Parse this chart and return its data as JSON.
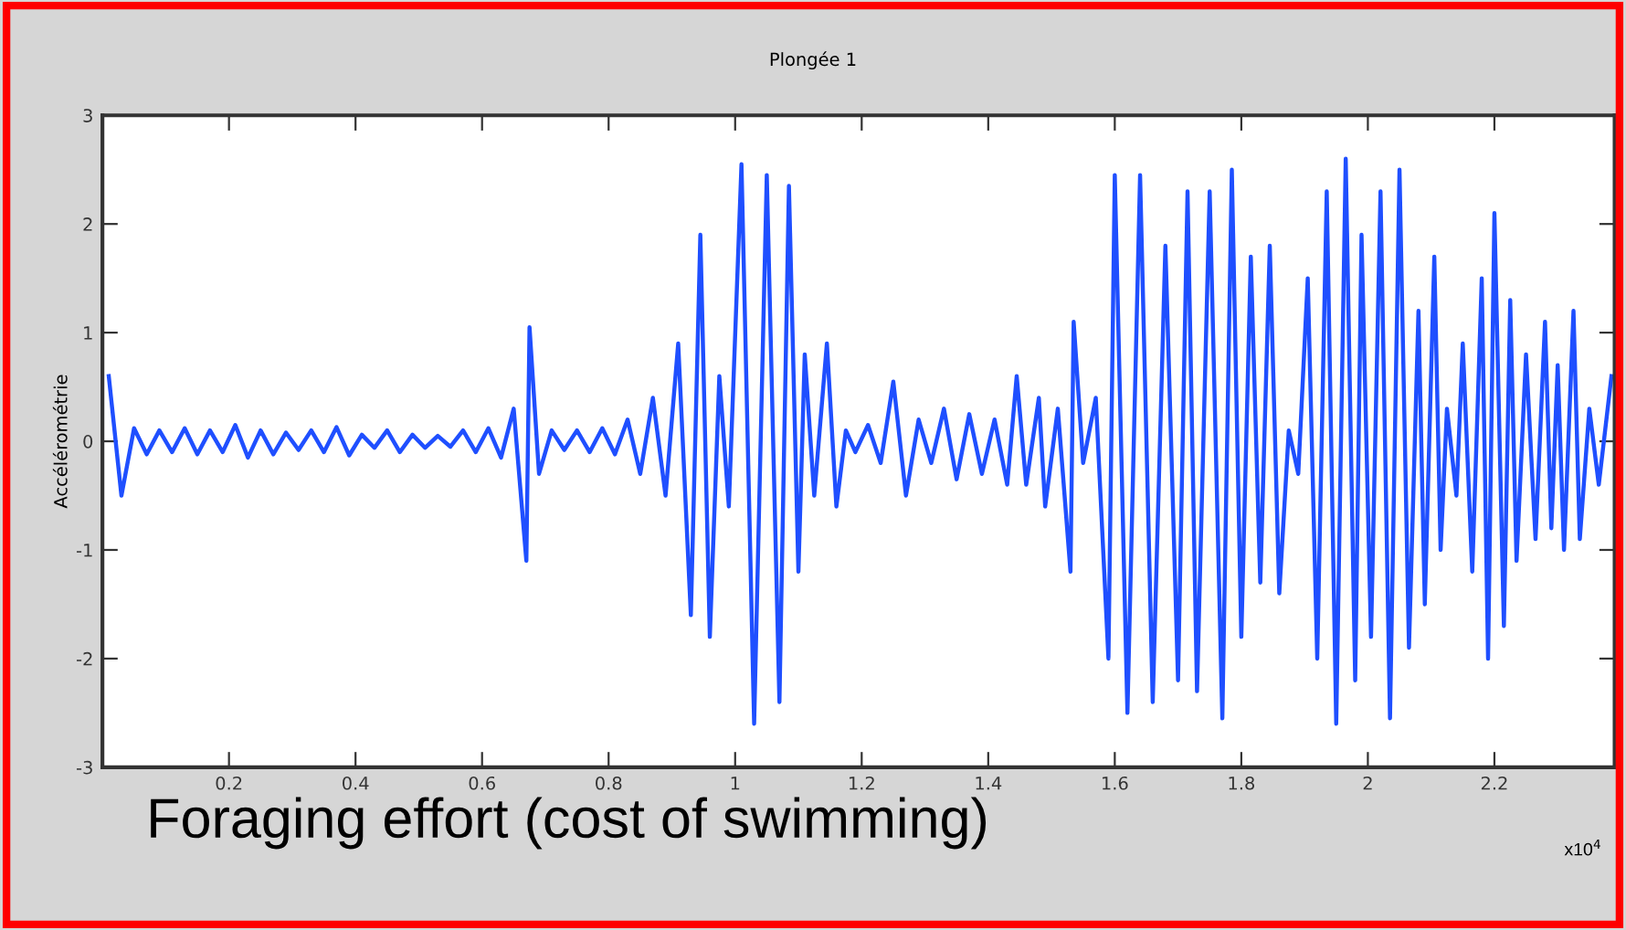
{
  "chart_data": {
    "type": "line",
    "title": "Plongée 1",
    "ylabel": "Accélérométrie",
    "annotations": [
      "x10$^{4}$",
      "Foraging effort (cost of swimming)"
    ],
    "series": [
      {
        "color": "#1f4fff",
        "x": [
          0.01,
          0.03,
          0.05,
          0.07,
          0.09,
          0.11,
          0.13,
          0.15,
          0.17,
          0.19,
          0.21,
          0.23,
          0.25,
          0.27,
          0.29,
          0.31,
          0.33,
          0.35,
          0.37,
          0.39,
          0.41,
          0.43,
          0.45,
          0.47,
          0.49,
          0.51,
          0.53,
          0.55,
          0.57,
          0.59,
          0.61,
          0.63,
          0.65,
          0.67,
          0.675,
          0.69,
          0.71,
          0.73,
          0.75,
          0.77,
          0.79,
          0.81,
          0.83,
          0.85,
          0.87,
          0.89,
          0.91,
          0.93,
          0.945,
          0.96,
          0.975,
          0.99,
          1.01,
          1.03,
          1.05,
          1.07,
          1.085,
          1.1,
          1.11,
          1.125,
          1.145,
          1.16,
          1.175,
          1.19,
          1.21,
          1.23,
          1.25,
          1.27,
          1.29,
          1.31,
          1.33,
          1.35,
          1.37,
          1.39,
          1.41,
          1.43,
          1.445,
          1.46,
          1.48,
          1.49,
          1.51,
          1.53,
          1.535,
          1.55,
          1.57,
          1.59,
          1.6,
          1.62,
          1.64,
          1.66,
          1.68,
          1.7,
          1.715,
          1.73,
          1.75,
          1.77,
          1.785,
          1.8,
          1.815,
          1.83,
          1.845,
          1.86,
          1.875,
          1.89,
          1.905,
          1.92,
          1.935,
          1.95,
          1.965,
          1.98,
          1.99,
          2.005,
          2.02,
          2.035,
          2.05,
          2.065,
          2.08,
          2.09,
          2.105,
          2.115,
          2.125,
          2.14,
          2.15,
          2.165,
          2.18,
          2.19,
          2.2,
          2.215,
          2.225,
          2.235,
          2.25,
          2.265,
          2.28,
          2.29,
          2.3,
          2.31,
          2.325,
          2.335,
          2.35,
          2.365,
          2.385
        ],
        "values": [
          0.6,
          -0.5,
          0.12,
          -0.12,
          0.1,
          -0.1,
          0.12,
          -0.12,
          0.1,
          -0.1,
          0.15,
          -0.15,
          0.1,
          -0.12,
          0.08,
          -0.08,
          0.1,
          -0.1,
          0.13,
          -0.13,
          0.06,
          -0.06,
          0.1,
          -0.1,
          0.06,
          -0.06,
          0.05,
          -0.05,
          0.1,
          -0.1,
          0.12,
          -0.15,
          0.3,
          -1.1,
          1.05,
          -0.3,
          0.1,
          -0.08,
          0.1,
          -0.1,
          0.12,
          -0.12,
          0.2,
          -0.3,
          0.4,
          -0.5,
          0.9,
          -1.6,
          1.9,
          -1.8,
          0.6,
          -0.6,
          2.55,
          -2.6,
          2.45,
          -2.4,
          2.35,
          -1.2,
          0.8,
          -0.5,
          0.9,
          -0.6,
          0.1,
          -0.1,
          0.15,
          -0.2,
          0.55,
          -0.5,
          0.2,
          -0.2,
          0.3,
          -0.35,
          0.25,
          -0.3,
          0.2,
          -0.4,
          0.6,
          -0.4,
          0.4,
          -0.6,
          0.3,
          -1.2,
          1.1,
          -0.2,
          0.4,
          -2.0,
          2.45,
          -2.5,
          2.45,
          -2.4,
          1.8,
          -2.2,
          2.3,
          -2.3,
          2.3,
          -2.55,
          2.5,
          -1.8,
          1.7,
          -1.3,
          1.8,
          -1.4,
          0.1,
          -0.3,
          1.5,
          -2.0,
          2.3,
          -2.6,
          2.6,
          -2.2,
          1.9,
          -1.8,
          2.3,
          -2.55,
          2.5,
          -1.9,
          1.2,
          -1.5,
          1.7,
          -1.0,
          0.3,
          -0.5,
          0.9,
          -1.2,
          1.5,
          -2.0,
          2.1,
          -1.7,
          1.3,
          -1.1,
          0.8,
          -0.9,
          1.1,
          -0.8,
          0.7,
          -1.0,
          1.2,
          -0.9,
          0.3,
          -0.4,
          0.6
        ]
      }
    ],
    "xlim": [
      0,
      2.39
    ],
    "xticks": [
      0.2,
      0.4,
      0.6,
      0.8,
      1,
      1.2,
      1.4,
      1.6,
      1.8,
      2,
      2.2
    ],
    "ylim": [
      -3,
      3
    ],
    "yticks": [
      -3,
      -2,
      -1,
      0,
      1,
      2,
      3
    ],
    "grid": false,
    "marker": "none",
    "line_style": "solid"
  }
}
